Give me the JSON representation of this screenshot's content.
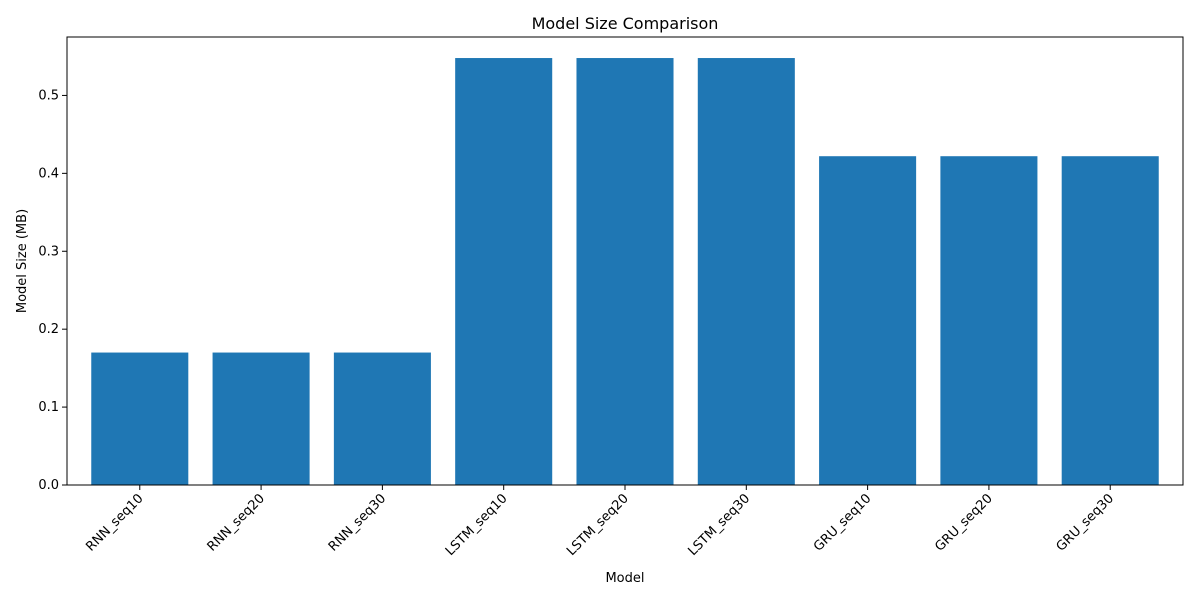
{
  "chart_data": {
    "type": "bar",
    "title": "Model Size Comparison",
    "xlabel": "Model",
    "ylabel": "Model Size (MB)",
    "categories": [
      "RNN_seq10",
      "RNN_seq20",
      "RNN_seq30",
      "LSTM_seq10",
      "LSTM_seq20",
      "LSTM_seq30",
      "GRU_seq10",
      "GRU_seq20",
      "GRU_seq30"
    ],
    "values": [
      0.17,
      0.17,
      0.17,
      0.548,
      0.548,
      0.548,
      0.422,
      0.422,
      0.422
    ],
    "ylim": [
      0,
      0.575
    ],
    "yticks": [
      0.0,
      0.1,
      0.2,
      0.3,
      0.4,
      0.5
    ],
    "ytick_labels": [
      "0.0",
      "0.1",
      "0.2",
      "0.3",
      "0.4",
      "0.5"
    ],
    "grid": false,
    "bar_color": "#1f77b4"
  }
}
